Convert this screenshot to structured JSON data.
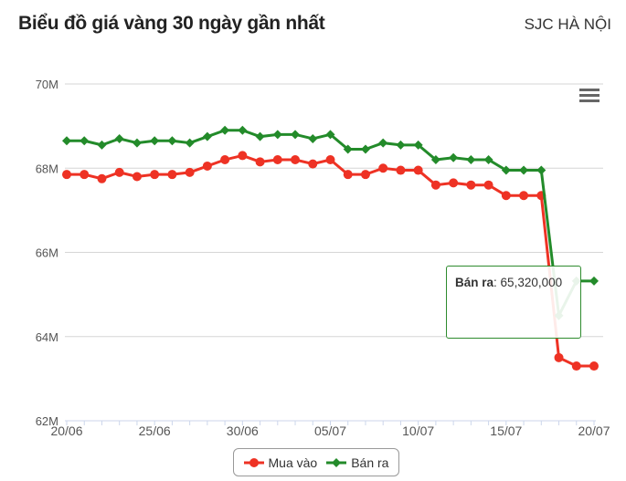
{
  "header": {
    "title": "Biểu đồ giá vàng 30 ngày gần nhất",
    "location": "SJC HÀ NỘI"
  },
  "tooltip": {
    "series": "Bán ra",
    "value": "65,320,000"
  },
  "legend": {
    "buy_label": "Mua vào",
    "sell_label": "Bán ra"
  },
  "colors": {
    "buy": "#ee3224",
    "sell": "#238b2a"
  },
  "chart_data": {
    "type": "line",
    "title": "Biểu đồ giá vàng 30 ngày gần nhất",
    "subtitle": "SJC HÀ NỘI",
    "xlabel": "",
    "ylabel": "",
    "ylim": [
      62000000,
      70000000
    ],
    "y_ticks": [
      "62M",
      "64M",
      "66M",
      "68M",
      "70M"
    ],
    "x_tick_labels": [
      "20/06",
      "25/06",
      "30/06",
      "05/07",
      "10/07",
      "15/07",
      "20/07"
    ],
    "grid": true,
    "legend_position": "bottom-center",
    "x": [
      "20/06",
      "21/06",
      "22/06",
      "23/06",
      "24/06",
      "25/06",
      "26/06",
      "27/06",
      "28/06",
      "29/06",
      "30/06",
      "01/07",
      "02/07",
      "03/07",
      "04/07",
      "05/07",
      "06/07",
      "07/07",
      "08/07",
      "09/07",
      "10/07",
      "11/07",
      "12/07",
      "13/07",
      "14/07",
      "15/07",
      "16/07",
      "17/07",
      "18/07",
      "19/07",
      "20/07"
    ],
    "series": [
      {
        "name": "Mua vào",
        "values": [
          67850000,
          67850000,
          67750000,
          67900000,
          67800000,
          67850000,
          67850000,
          67900000,
          68050000,
          68200000,
          68300000,
          68150000,
          68200000,
          68200000,
          68100000,
          68200000,
          67850000,
          67850000,
          68000000,
          67950000,
          67950000,
          67600000,
          67650000,
          67600000,
          67600000,
          67350000,
          67350000,
          67350000,
          63500000,
          63300000,
          63300000
        ]
      },
      {
        "name": "Bán ra",
        "values": [
          68650000,
          68650000,
          68550000,
          68700000,
          68600000,
          68650000,
          68650000,
          68600000,
          68750000,
          68900000,
          68900000,
          68750000,
          68800000,
          68800000,
          68700000,
          68800000,
          68450000,
          68450000,
          68600000,
          68550000,
          68550000,
          68200000,
          68250000,
          68200000,
          68200000,
          67950000,
          67950000,
          67950000,
          64500000,
          65320000,
          65320000
        ]
      }
    ]
  }
}
